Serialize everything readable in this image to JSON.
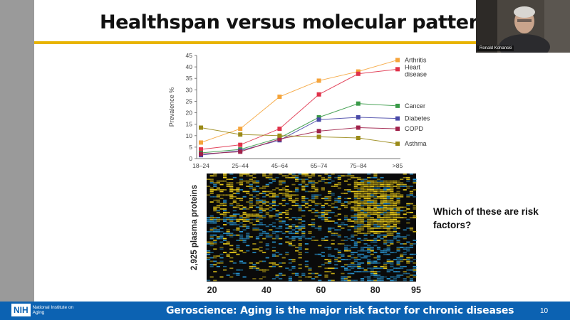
{
  "slide": {
    "title": "Healthspan versus molecular patterns",
    "question": "Which of these are risk factors?",
    "footer_text": "Geroscience: Aging is the major risk factor for chronic diseases",
    "page_number": "10",
    "logo": {
      "mark": "NIH",
      "name": "National Institute on Aging"
    }
  },
  "video": {
    "participant_name": "Ronald Kohanski"
  },
  "colors": {
    "accent": "#e8b400",
    "footer": "#0c62b2"
  },
  "chart_data": [
    {
      "type": "line",
      "ylabel": "Prevalence %",
      "categories": [
        "18–24",
        "25–44",
        "45–64",
        "65–74",
        "75–84",
        ">85"
      ],
      "ylim": [
        0,
        45
      ],
      "yticks": [
        0,
        5,
        10,
        15,
        20,
        25,
        30,
        35,
        40,
        45
      ],
      "series": [
        {
          "name": "Arthritis",
          "color": "#f5a43a",
          "values": [
            7,
            13,
            27,
            34,
            38,
            43
          ]
        },
        {
          "name": "Heart disease",
          "color": "#e0314a",
          "values": [
            4,
            6,
            13,
            28,
            37,
            39
          ]
        },
        {
          "name": "Cancer",
          "color": "#3a9a48",
          "values": [
            2.5,
            4,
            9,
            18,
            24,
            23
          ]
        },
        {
          "name": "Diabetes",
          "color": "#4a4aa8",
          "values": [
            1.5,
            3.5,
            8,
            17,
            18,
            17.5
          ]
        },
        {
          "name": "COPD",
          "color": "#a0214a",
          "values": [
            2,
            3,
            8.5,
            12,
            13.5,
            13
          ]
        },
        {
          "name": "Asthma",
          "color": "#9a8a18",
          "values": [
            13.5,
            10.5,
            10,
            9.5,
            9,
            6.5
          ]
        }
      ]
    },
    {
      "type": "heatmap",
      "ylabel": "2,925 plasma proteins",
      "x_ticks": [
        "20",
        "40",
        "60",
        "80",
        "95"
      ],
      "x_values": [
        20,
        40,
        60,
        80,
        95
      ],
      "xlim": [
        18,
        95
      ],
      "color_low": "#2a9ad8",
      "color_high": "#f2d21a"
    }
  ]
}
